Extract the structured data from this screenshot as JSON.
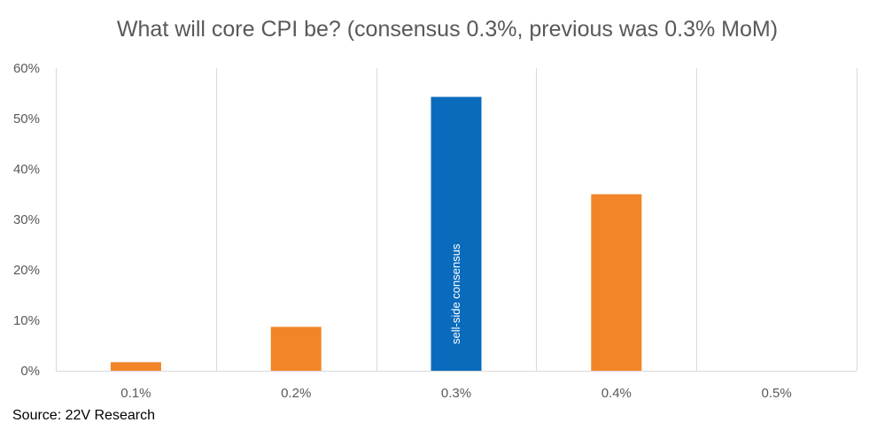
{
  "chart_data": {
    "type": "bar",
    "title": "What will core CPI be? (consensus 0.3%, previous was 0.3% MoM)",
    "categories": [
      "0.1%",
      "0.2%",
      "0.3%",
      "0.4%",
      "0.5%"
    ],
    "values": [
      1.7,
      8.7,
      54.3,
      35.0,
      0
    ],
    "ylim": [
      0,
      60
    ],
    "yticks": [
      0,
      10,
      20,
      30,
      40,
      50,
      60
    ],
    "ytick_labels": [
      "0%",
      "10%",
      "20%",
      "30%",
      "40%",
      "50%",
      "60%"
    ],
    "xlabel": "",
    "ylabel": "",
    "grid": "vertical category separators",
    "highlight_index": 2,
    "annotations": [
      {
        "category": "0.3%",
        "text": "sell-side consensus"
      }
    ],
    "colors": {
      "default": "#F28527",
      "highlight": "#0A6BBD"
    }
  },
  "source": "Source: 22V Research"
}
